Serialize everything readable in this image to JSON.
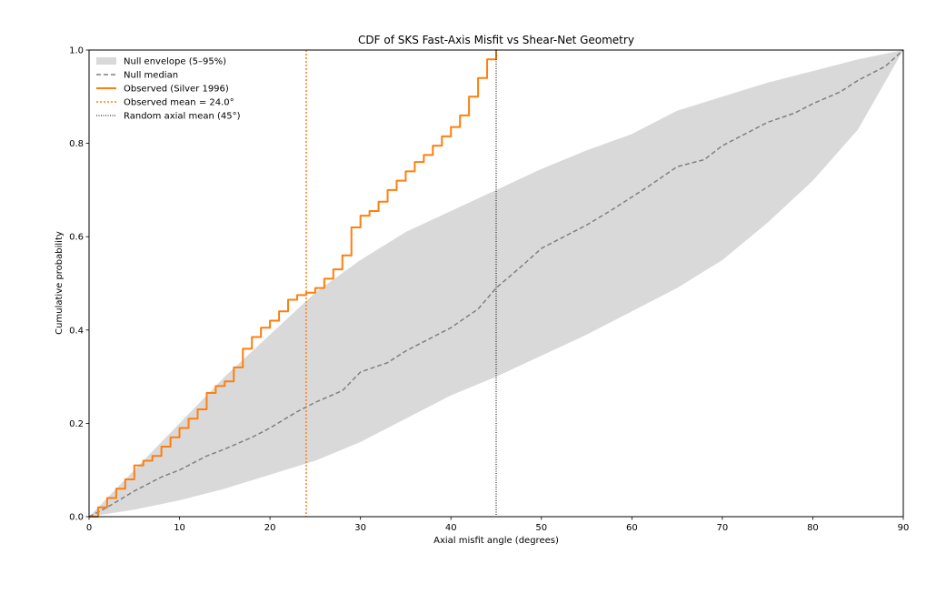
{
  "chart_data": {
    "type": "line",
    "title": "CDF of SKS Fast-Axis Misfit vs Shear-Net Geometry",
    "xlabel": "Axial misfit angle (degrees)",
    "ylabel": "Cumulative probability",
    "xlim": [
      0,
      90
    ],
    "ylim": [
      0,
      1
    ],
    "x_ticks": [
      0,
      10,
      20,
      30,
      40,
      50,
      60,
      70,
      80,
      90
    ],
    "y_ticks": [
      0.0,
      0.2,
      0.4,
      0.6,
      0.8,
      1.0
    ],
    "x_tick_labels": [
      "0",
      "10",
      "20",
      "30",
      "40",
      "50",
      "60",
      "70",
      "80",
      "90"
    ],
    "y_tick_labels": [
      "0.0",
      "0.2",
      "0.4",
      "0.6",
      "0.8",
      "1.0"
    ],
    "grid": false,
    "legend_position": "top-left",
    "legend": [
      {
        "label": "Null envelope (5–95%)",
        "kind": "patch",
        "color": "#d9d9d9"
      },
      {
        "label": "Null median",
        "kind": "dashed",
        "color": "#808080"
      },
      {
        "label": "Observed (Silver 1996)",
        "kind": "solid",
        "color": "#ff7f0e"
      },
      {
        "label": "Observed mean = 24.0°",
        "kind": "dotted",
        "color": "#ff7f0e"
      },
      {
        "label": "Random axial mean (45°)",
        "kind": "dotted-thin",
        "color": "#000000"
      }
    ],
    "envelope": {
      "name": "Null envelope (5–95%)",
      "color": "#d9d9d9",
      "x": [
        0,
        5,
        10,
        15,
        20,
        25,
        30,
        35,
        40,
        45,
        50,
        55,
        60,
        65,
        70,
        75,
        80,
        85,
        90
      ],
      "upper": [
        0.0,
        0.1,
        0.2,
        0.3,
        0.39,
        0.48,
        0.55,
        0.61,
        0.655,
        0.7,
        0.745,
        0.785,
        0.82,
        0.87,
        0.9,
        0.93,
        0.955,
        0.98,
        1.0
      ],
      "lower": [
        0.0,
        0.015,
        0.035,
        0.06,
        0.09,
        0.12,
        0.16,
        0.21,
        0.26,
        0.3,
        0.345,
        0.39,
        0.44,
        0.49,
        0.55,
        0.63,
        0.72,
        0.83,
        1.0
      ]
    },
    "median": {
      "name": "Null median",
      "color": "#808080",
      "x": [
        0,
        2,
        5,
        8,
        10,
        13,
        15,
        18,
        20,
        23,
        25,
        28,
        30,
        33,
        35,
        38,
        40,
        43,
        45,
        48,
        50,
        53,
        55,
        58,
        60,
        62,
        65,
        68,
        70,
        73,
        75,
        78,
        80,
        83,
        85,
        88,
        90
      ],
      "y": [
        0.0,
        0.02,
        0.055,
        0.085,
        0.1,
        0.13,
        0.145,
        0.17,
        0.19,
        0.225,
        0.245,
        0.27,
        0.31,
        0.33,
        0.355,
        0.385,
        0.405,
        0.445,
        0.49,
        0.54,
        0.575,
        0.605,
        0.625,
        0.66,
        0.685,
        0.71,
        0.75,
        0.765,
        0.795,
        0.825,
        0.845,
        0.865,
        0.885,
        0.91,
        0.935,
        0.965,
        1.0
      ]
    },
    "observed": {
      "name": "Observed (Silver 1996)",
      "color": "#ff7f0e",
      "x": [
        0,
        1,
        2,
        3,
        4,
        5,
        6,
        7,
        8,
        9,
        10,
        11,
        12,
        13,
        14,
        15,
        16,
        17,
        18,
        19,
        20,
        21,
        22,
        23,
        24,
        25,
        26,
        27,
        28,
        29,
        30,
        31,
        32,
        33,
        34,
        35,
        36,
        37,
        38,
        39,
        40,
        41,
        42,
        43,
        44,
        45
      ],
      "y": [
        0.0,
        0.02,
        0.04,
        0.06,
        0.08,
        0.11,
        0.12,
        0.13,
        0.15,
        0.17,
        0.19,
        0.21,
        0.23,
        0.265,
        0.28,
        0.29,
        0.32,
        0.36,
        0.385,
        0.405,
        0.42,
        0.44,
        0.465,
        0.475,
        0.48,
        0.49,
        0.51,
        0.53,
        0.56,
        0.62,
        0.645,
        0.655,
        0.675,
        0.7,
        0.72,
        0.74,
        0.76,
        0.775,
        0.795,
        0.815,
        0.835,
        0.86,
        0.9,
        0.94,
        0.98,
        1.0
      ]
    },
    "vlines": [
      {
        "name": "Observed mean = 24.0°",
        "x": 24.0,
        "color": "#ff7f0e",
        "style": "dotted"
      },
      {
        "name": "Random axial mean (45°)",
        "x": 45,
        "color": "#000000",
        "style": "dotted-thin"
      }
    ]
  }
}
